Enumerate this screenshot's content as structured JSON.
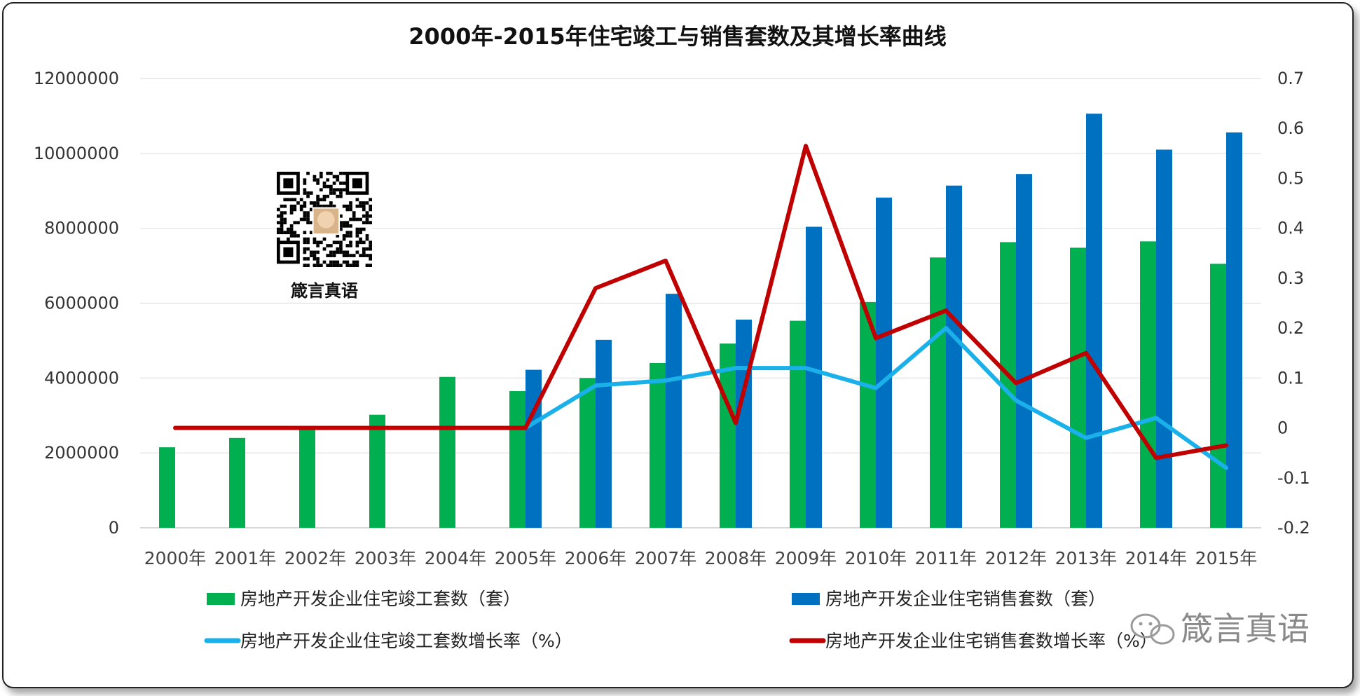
{
  "chart_data": {
    "type": "bar",
    "title": "2000年-2015年住宅竣工与销售套数及其增长率曲线",
    "categories": [
      "2000年",
      "2001年",
      "2002年",
      "2003年",
      "2004年",
      "2005年",
      "2006年",
      "2007年",
      "2008年",
      "2009年",
      "2010年",
      "2011年",
      "2012年",
      "2013年",
      "2014年",
      "2015年"
    ],
    "y_left": {
      "min": 0,
      "max": 12000000,
      "ticks": [
        "0",
        "2000000",
        "4000000",
        "6000000",
        "8000000",
        "10000000",
        "12000000"
      ]
    },
    "y_right": {
      "min": -0.2,
      "max": 0.7,
      "ticks": [
        "-0.2",
        "-0.1",
        "0",
        "0.1",
        "0.2",
        "0.3",
        "0.4",
        "0.5",
        "0.6",
        "0.7"
      ]
    },
    "grid": true,
    "legend_position": "bottom",
    "series": [
      {
        "name": "房地产开发企业住宅竣工套数（套）",
        "kind": "bar",
        "axis": "left",
        "color": "#00b050",
        "values": [
          2150000,
          2400000,
          2700000,
          3020000,
          4030000,
          3650000,
          4000000,
          4400000,
          4920000,
          5530000,
          6030000,
          7220000,
          7630000,
          7480000,
          7650000,
          7050000
        ]
      },
      {
        "name": "房地产开发企业住宅销售套数（套）",
        "kind": "bar",
        "axis": "left",
        "color": "#0070c0",
        "values": [
          null,
          null,
          null,
          null,
          null,
          4220000,
          5020000,
          6250000,
          5560000,
          8040000,
          8820000,
          9140000,
          9450000,
          11060000,
          10100000,
          10560000
        ]
      },
      {
        "name": "房地产开发企业住宅竣工套数增长率（%）",
        "kind": "line",
        "axis": "right",
        "color": "#1ab0ea",
        "values": [
          null,
          null,
          null,
          null,
          null,
          0.0,
          0.085,
          0.095,
          0.12,
          0.12,
          0.08,
          0.2,
          0.055,
          -0.02,
          0.02,
          -0.08
        ]
      },
      {
        "name": "房地产开发企业住宅销售套数增长率（%）",
        "kind": "line",
        "axis": "right",
        "color": "#c00000",
        "values": [
          0.0,
          0.0,
          0.0,
          0.0,
          0.0,
          0.0,
          0.28,
          0.335,
          0.01,
          0.565,
          0.18,
          0.235,
          0.09,
          0.15,
          -0.06,
          -0.035
        ]
      }
    ]
  },
  "logo": {
    "caption": "箴言真语"
  },
  "watermark": {
    "text": "箴言真语"
  }
}
